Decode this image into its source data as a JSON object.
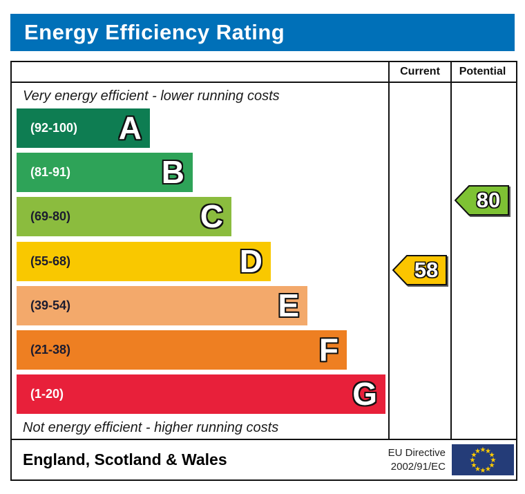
{
  "title": "Energy Efficiency Rating",
  "colors": {
    "title_bar": "#0070B8",
    "border": "#111111"
  },
  "headers": {
    "current": "Current",
    "potential": "Potential"
  },
  "notes": {
    "top": "Very energy efficient - lower running costs",
    "bottom": "Not energy efficient - higher running costs"
  },
  "chart_data": {
    "type": "bar",
    "title": "Energy Efficiency Rating",
    "bands": [
      {
        "letter": "A",
        "range_label": "(92-100)",
        "min": 92,
        "max": 100,
        "color": "#0E7D52",
        "label_color": "#FFFFFF"
      },
      {
        "letter": "B",
        "range_label": "(81-91)",
        "min": 81,
        "max": 91,
        "color": "#2EA358",
        "label_color": "#FFFFFF"
      },
      {
        "letter": "C",
        "range_label": "(69-80)",
        "min": 69,
        "max": 80,
        "color": "#8BBC3E",
        "label_color": "#1B1B2F"
      },
      {
        "letter": "D",
        "range_label": "(55-68)",
        "min": 55,
        "max": 68,
        "color": "#F9C800",
        "label_color": "#1B1B2F"
      },
      {
        "letter": "E",
        "range_label": "(39-54)",
        "min": 39,
        "max": 54,
        "color": "#F3A96B",
        "label_color": "#1B1B2F"
      },
      {
        "letter": "F",
        "range_label": "(21-38)",
        "min": 21,
        "max": 38,
        "color": "#EE7F22",
        "label_color": "#1B1B2F"
      },
      {
        "letter": "G",
        "range_label": "(1-20)",
        "min": 1,
        "max": 20,
        "color": "#E8203A",
        "label_color": "#FFFFFF"
      }
    ],
    "current": {
      "value": 58,
      "band": "D",
      "color": "#FCC500"
    },
    "potential": {
      "value": 80,
      "band": "C",
      "color": "#7EC234"
    }
  },
  "footer": {
    "region": "England, Scotland & Wales",
    "directive_line1": "EU Directive",
    "directive_line2": "2002/91/EC",
    "flag": {
      "name": "eu-flag",
      "field_color": "#243C78",
      "star_color": "#FFCC00"
    }
  }
}
